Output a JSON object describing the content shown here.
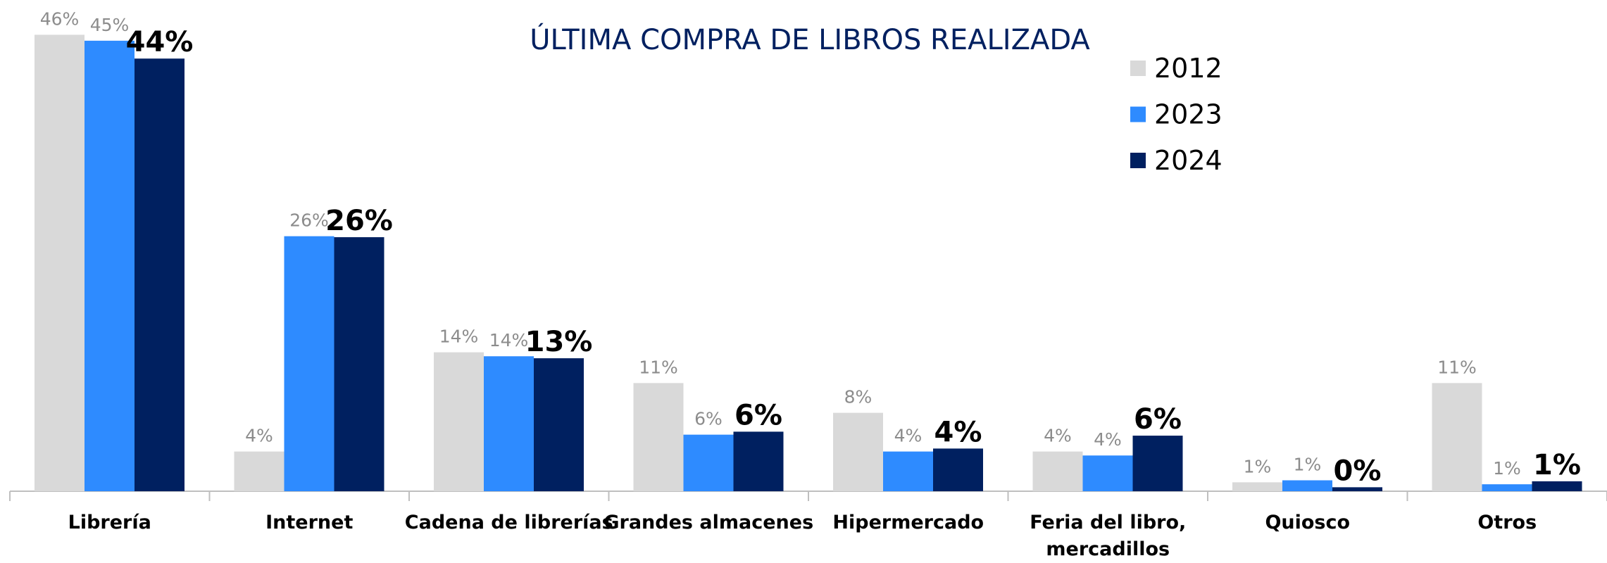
{
  "chart_data": {
    "type": "bar",
    "title": "ÚLTIMA COMPRA DE LIBROS REALIZADA",
    "categories": [
      "Librería",
      "Internet",
      "Cadena de librerías",
      "Grandes almacenes",
      "Hipermercado",
      "Feria del libro, mercadillos",
      "Quiosco",
      "Otros"
    ],
    "series": [
      {
        "name": "2012",
        "color": "#d9d9d9",
        "values": [
          46,
          4,
          14,
          10.9,
          7.9,
          4.0,
          0.9,
          10.9
        ],
        "value_labels": [
          "46%",
          "4%",
          "14%",
          "11%",
          "8%",
          "4%",
          "1%",
          "11%"
        ]
      },
      {
        "name": "2023",
        "color": "#2e8bff",
        "values": [
          45.4,
          25.7,
          13.6,
          5.7,
          4.0,
          3.6,
          1.1,
          0.7
        ],
        "value_labels": [
          "45%",
          "26%",
          "14%",
          "6%",
          "4%",
          "4%",
          "1%",
          "1%"
        ]
      },
      {
        "name": "2024",
        "color": "#002060",
        "values": [
          43.6,
          25.6,
          13.4,
          6.0,
          4.3,
          5.6,
          0.4,
          1.0
        ],
        "value_labels": [
          "44%",
          "26%",
          "13%",
          "6%",
          "4%",
          "6%",
          "0%",
          "1%"
        ]
      }
    ],
    "legend": "top-right"
  }
}
